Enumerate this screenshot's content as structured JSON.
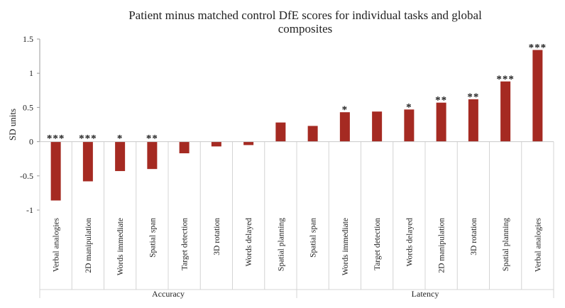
{
  "chart_data": {
    "type": "bar",
    "title_line1": "Patient minus matched control DfE scores for individual tasks and global",
    "title_line2": "composites",
    "ylabel": "SD units",
    "ylim": [
      -1,
      1.5
    ],
    "yticks": [
      {
        "value": 1.5,
        "label": "1.5"
      },
      {
        "value": 1,
        "label": "1"
      },
      {
        "value": 0.5,
        "label": "0.5"
      },
      {
        "value": 0,
        "label": "0"
      },
      {
        "value": -0.5,
        "label": "-0.5"
      },
      {
        "value": -1,
        "label": "-1"
      }
    ],
    "bar_color": "#a52a22",
    "groups": [
      {
        "name": "Accuracy",
        "categories": [
          {
            "label": "Verbal analogies",
            "value": -0.86,
            "sig": "***"
          },
          {
            "label": "2D manipulation",
            "value": -0.58,
            "sig": "***"
          },
          {
            "label": "Words immediate",
            "value": -0.43,
            "sig": "*"
          },
          {
            "label": "Spatial span",
            "value": -0.4,
            "sig": "**"
          },
          {
            "label": "Target detection",
            "value": -0.17,
            "sig": ""
          },
          {
            "label": "3D rotation",
            "value": -0.07,
            "sig": ""
          },
          {
            "label": "Words delayed",
            "value": -0.05,
            "sig": ""
          },
          {
            "label": "Spatial planning",
            "value": 0.28,
            "sig": ""
          }
        ]
      },
      {
        "name": "Latency",
        "categories": [
          {
            "label": "Spatial span",
            "value": 0.23,
            "sig": ""
          },
          {
            "label": "Words immediate",
            "value": 0.43,
            "sig": "*"
          },
          {
            "label": "Target detection",
            "value": 0.44,
            "sig": ""
          },
          {
            "label": "Words delayed",
            "value": 0.47,
            "sig": "*"
          },
          {
            "label": "2D manipulation",
            "value": 0.57,
            "sig": "**"
          },
          {
            "label": "3D rotation",
            "value": 0.62,
            "sig": "**"
          },
          {
            "label": "Spatial planning",
            "value": 0.88,
            "sig": "***"
          },
          {
            "label": "Verbal analogies",
            "value": 1.34,
            "sig": "***"
          }
        ]
      }
    ]
  }
}
